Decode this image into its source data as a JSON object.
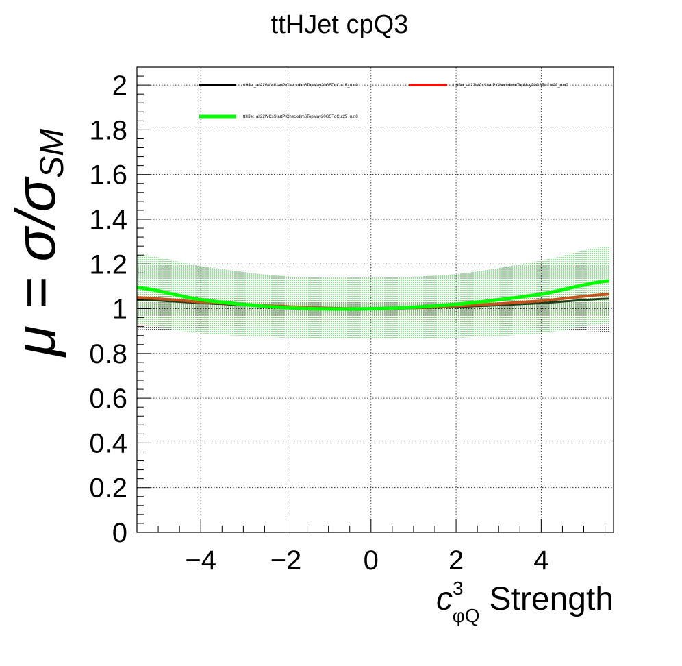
{
  "chart_data": {
    "type": "line",
    "title": "ttHJet cpQ3",
    "xlabel": {
      "symbol": "c",
      "superscript": "3",
      "subscript": "φQ",
      "text": "Strength"
    },
    "ylabel": {
      "prefix": "μ = σ/σ",
      "subscript": "SM"
    },
    "xlim": [
      -5.5,
      5.7
    ],
    "ylim": [
      0,
      2.1
    ],
    "xticks": [
      {
        "value": -4,
        "label": "−4"
      },
      {
        "value": -2,
        "label": "−2"
      },
      {
        "value": 0,
        "label": "0"
      },
      {
        "value": 2,
        "label": "2"
      },
      {
        "value": 4,
        "label": "4"
      }
    ],
    "yticks": [
      {
        "value": 0,
        "label": "0"
      },
      {
        "value": 0.2,
        "label": "0.2"
      },
      {
        "value": 0.4,
        "label": "0.4"
      },
      {
        "value": 0.6,
        "label": "0.6"
      },
      {
        "value": 0.8,
        "label": "0.8"
      },
      {
        "value": 1.0,
        "label": "1"
      },
      {
        "value": 1.2,
        "label": "1.2"
      },
      {
        "value": 1.4,
        "label": "1.4"
      },
      {
        "value": 1.6,
        "label": "1.6"
      },
      {
        "value": 1.8,
        "label": "1.8"
      },
      {
        "value": 2.0,
        "label": "2"
      }
    ],
    "grid": true,
    "legend_position": "top",
    "series": [
      {
        "name": "ttHJet_all22WCsStartPtCheckdim6TopMay20GSTqCut15_run0",
        "color": "#000000",
        "x": [
          -5.5,
          -4,
          -2,
          0,
          2,
          4,
          5.6
        ],
        "y": [
          1.04,
          1.025,
          1.008,
          1.0,
          1.008,
          1.025,
          1.045
        ],
        "band_low": [
          0.9,
          0.915,
          0.935,
          0.945,
          0.935,
          0.915,
          0.895
        ],
        "band_high": [
          1.06,
          1.05,
          1.035,
          1.03,
          1.035,
          1.05,
          1.07
        ]
      },
      {
        "name": "ttHJet_all22WCsStartPtCheckdim6TopMay20GSTqCut20_run0",
        "color": "#e8160c",
        "x": [
          -5.5,
          -4,
          -2,
          0,
          2,
          4,
          5.6
        ],
        "y": [
          1.05,
          1.03,
          1.01,
          1.0,
          1.012,
          1.035,
          1.065
        ],
        "band_low": [
          0.92,
          0.92,
          0.935,
          0.945,
          0.935,
          0.925,
          0.955
        ],
        "band_high": [
          1.07,
          1.055,
          1.04,
          1.035,
          1.04,
          1.06,
          1.085
        ]
      },
      {
        "name": "ttHJet_all22WCsStartPtCheckdim6TopMay20GSTqCut25_run0",
        "color": "#00ff00",
        "x": [
          -5.5,
          -4,
          -2,
          0,
          2,
          4,
          5.6
        ],
        "y": [
          1.095,
          1.04,
          1.005,
          1.0,
          1.02,
          1.065,
          1.125
        ],
        "band_low": [
          0.93,
          0.89,
          0.87,
          0.865,
          0.87,
          0.89,
          0.935
        ],
        "band_high": [
          1.245,
          1.19,
          1.145,
          1.14,
          1.155,
          1.215,
          1.28
        ]
      }
    ]
  }
}
